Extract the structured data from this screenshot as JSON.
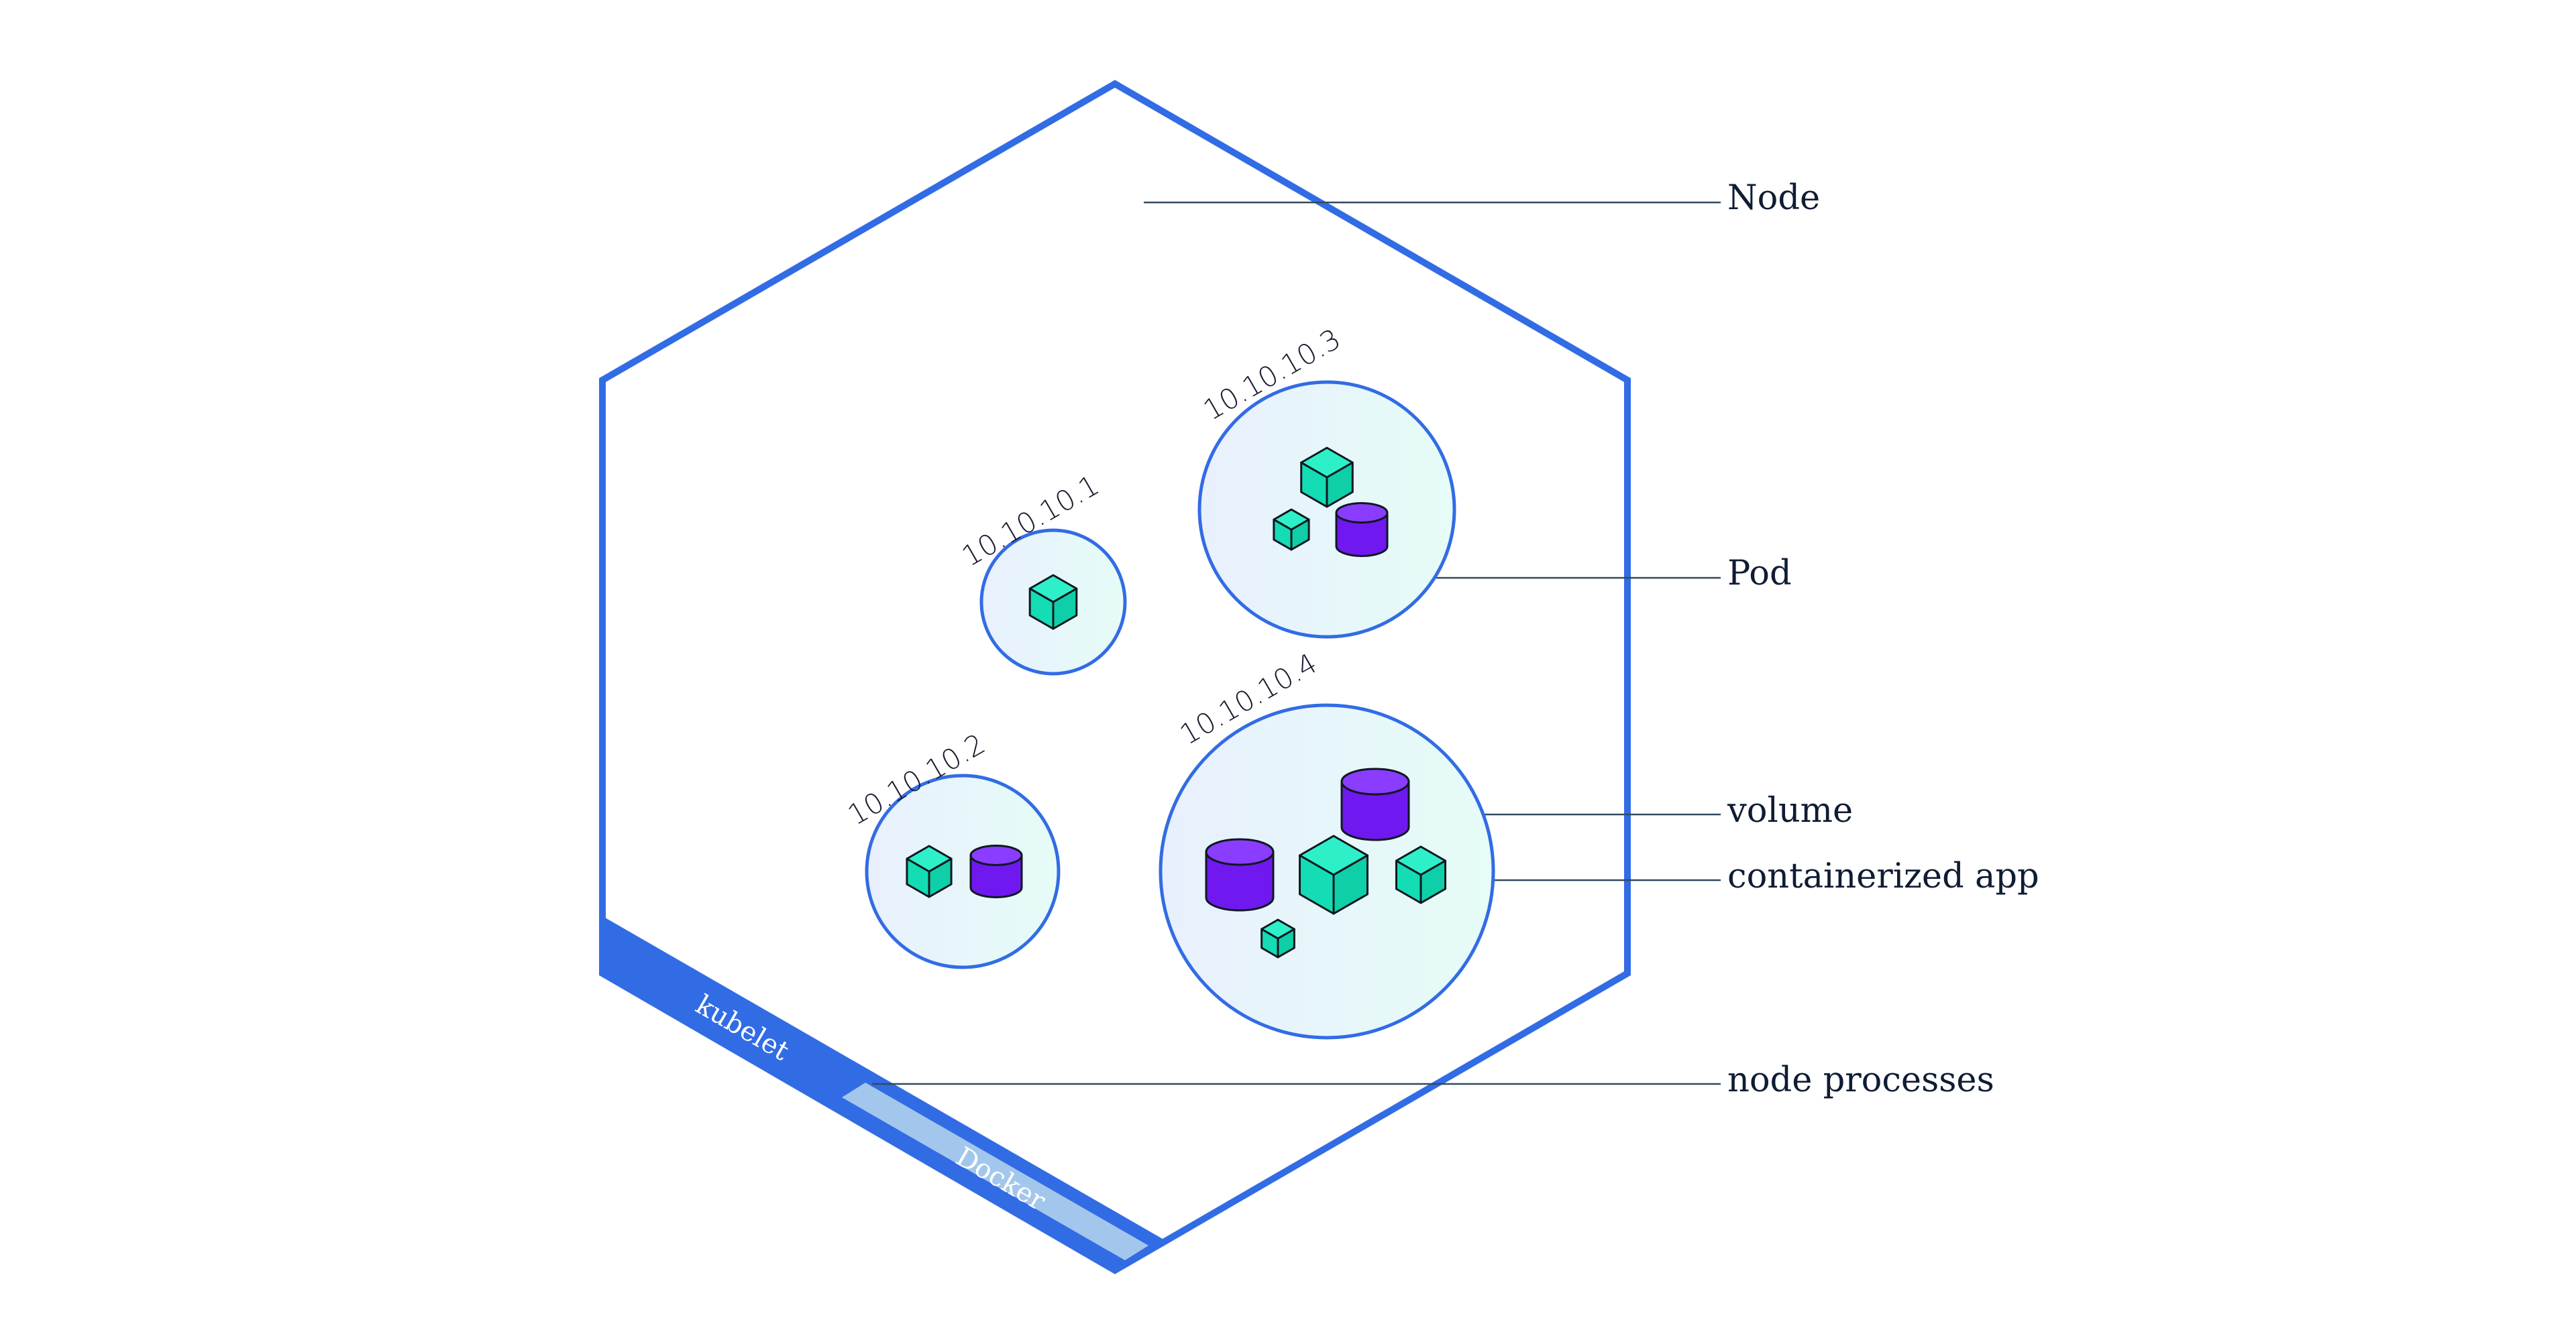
{
  "labels": {
    "node": "Node",
    "pod": "Pod",
    "volume": "volume",
    "containerized_app": "containerized app",
    "node_processes": "node processes"
  },
  "pods": [
    {
      "ip": "10.10.10.1"
    },
    {
      "ip": "10.10.10.2"
    },
    {
      "ip": "10.10.10.3"
    },
    {
      "ip": "10.10.10.4"
    }
  ],
  "processes": {
    "kubelet": "kubelet",
    "docker": "Docker"
  },
  "colors": {
    "node_border": "#326ce5",
    "kubelet_band": "#326ce5",
    "docker_band": "#a3c7ec",
    "container": "#14dcb4",
    "volume": "#7018f0"
  }
}
